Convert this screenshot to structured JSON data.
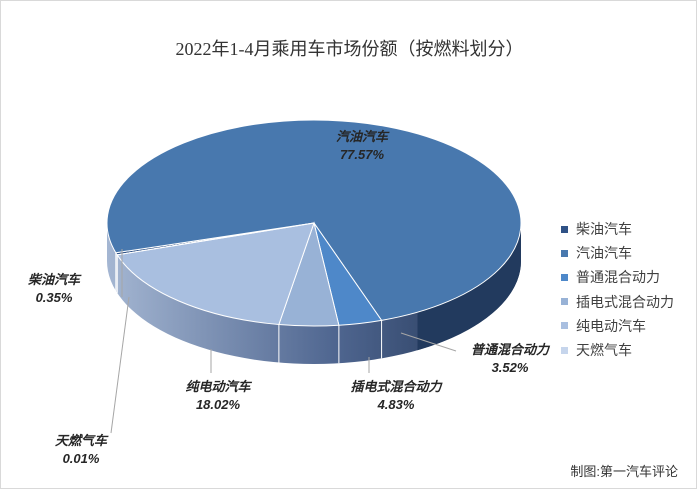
{
  "chart_data": {
    "type": "pie",
    "title": "2022年1-4月乘用车市场份额（按燃料划分）",
    "series": [
      {
        "name": "柴油汽车",
        "value": 0.35,
        "label": "0.35%",
        "color": "#2f5286"
      },
      {
        "name": "汽油汽车",
        "value": 77.57,
        "label": "77.57%",
        "color": "#4878ae"
      },
      {
        "name": "普通混合动力",
        "value": 3.52,
        "label": "3.52%",
        "color": "#4e88c9"
      },
      {
        "name": "插电式混合动力",
        "value": 4.83,
        "label": "4.83%",
        "color": "#98b2d6"
      },
      {
        "name": "纯电动汽车",
        "value": 18.02,
        "label": "18.02%",
        "color": "#a9bfe0"
      },
      {
        "name": "天燃气车",
        "value": 0.01,
        "label": "0.01%",
        "color": "#c6d5ec"
      }
    ],
    "legend_position": "right"
  },
  "source_note": "制图:第一汽车评论"
}
